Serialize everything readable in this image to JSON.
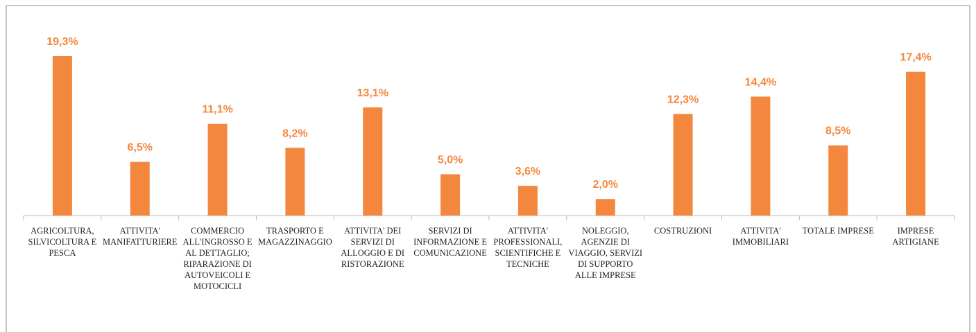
{
  "chart_data": {
    "type": "bar",
    "categories": [
      "AGRICOLTURA, SILVICOLTURA E PESCA",
      "ATTIVITA' MANIFATTURIERE",
      "COMMERCIO ALL'INGROSSO E AL DETTAGLIO; RIPARAZIONE DI AUTOVEICOLI E MOTOCICLI",
      "TRASPORTO E MAGAZZINAGGIO",
      "ATTIVITA' DEI SERVIZI DI ALLOGGIO E DI RISTORAZIONE",
      "SERVIZI DI INFORMAZIONE E COMUNICAZIONE",
      "ATTIVITA' PROFESSIONALI, SCIENTIFICHE E TECNICHE",
      "NOLEGGIO, AGENZIE DI VIAGGIO, SERVIZI DI SUPPORTO ALLE IMPRESE",
      "COSTRUZIONI",
      "ATTIVITA' IMMOBILIARI",
      "TOTALE IMPRESE",
      "IMPRESE ARTIGIANE"
    ],
    "values": [
      19.3,
      6.5,
      11.1,
      8.2,
      13.1,
      5.0,
      3.6,
      2.0,
      12.3,
      14.4,
      8.5,
      17.4
    ],
    "value_labels": [
      "19,3%",
      "6,5%",
      "11,1%",
      "8,2%",
      "13,1%",
      "5,0%",
      "3,6%",
      "2,0%",
      "12,3%",
      "14,4%",
      "8,5%",
      "17,4%"
    ],
    "color": "#f4873e"
  }
}
